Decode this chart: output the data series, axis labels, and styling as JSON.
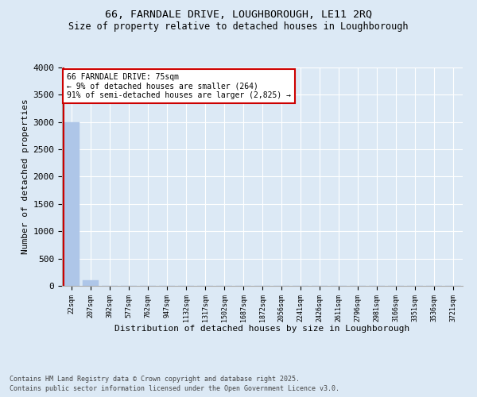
{
  "title_line1": "66, FARNDALE DRIVE, LOUGHBOROUGH, LE11 2RQ",
  "title_line2": "Size of property relative to detached houses in Loughborough",
  "xlabel": "Distribution of detached houses by size in Loughborough",
  "ylabel": "Number of detached properties",
  "footer_line1": "Contains HM Land Registry data © Crown copyright and database right 2025.",
  "footer_line2": "Contains public sector information licensed under the Open Government Licence v3.0.",
  "annotation_line1": "66 FARNDALE DRIVE: 75sqm",
  "annotation_line2": "← 9% of detached houses are smaller (264)",
  "annotation_line3": "91% of semi-detached houses are larger (2,825) →",
  "bar_categories": [
    "22sqm",
    "207sqm",
    "392sqm",
    "577sqm",
    "762sqm",
    "947sqm",
    "1132sqm",
    "1317sqm",
    "1502sqm",
    "1687sqm",
    "1872sqm",
    "2056sqm",
    "2241sqm",
    "2426sqm",
    "2611sqm",
    "2796sqm",
    "2981sqm",
    "3166sqm",
    "3351sqm",
    "3536sqm",
    "3721sqm"
  ],
  "bar_values": [
    3000,
    100,
    0,
    0,
    0,
    0,
    0,
    0,
    0,
    0,
    0,
    0,
    0,
    0,
    0,
    0,
    0,
    0,
    0,
    0,
    0
  ],
  "bar_color": "#aec6e8",
  "property_line_color": "#cc0000",
  "bg_color": "#dce9f5",
  "grid_color": "#ffffff",
  "annotation_box_color": "#cc0000",
  "ylim": [
    0,
    4000
  ],
  "yticks": [
    0,
    500,
    1000,
    1500,
    2000,
    2500,
    3000,
    3500,
    4000
  ]
}
